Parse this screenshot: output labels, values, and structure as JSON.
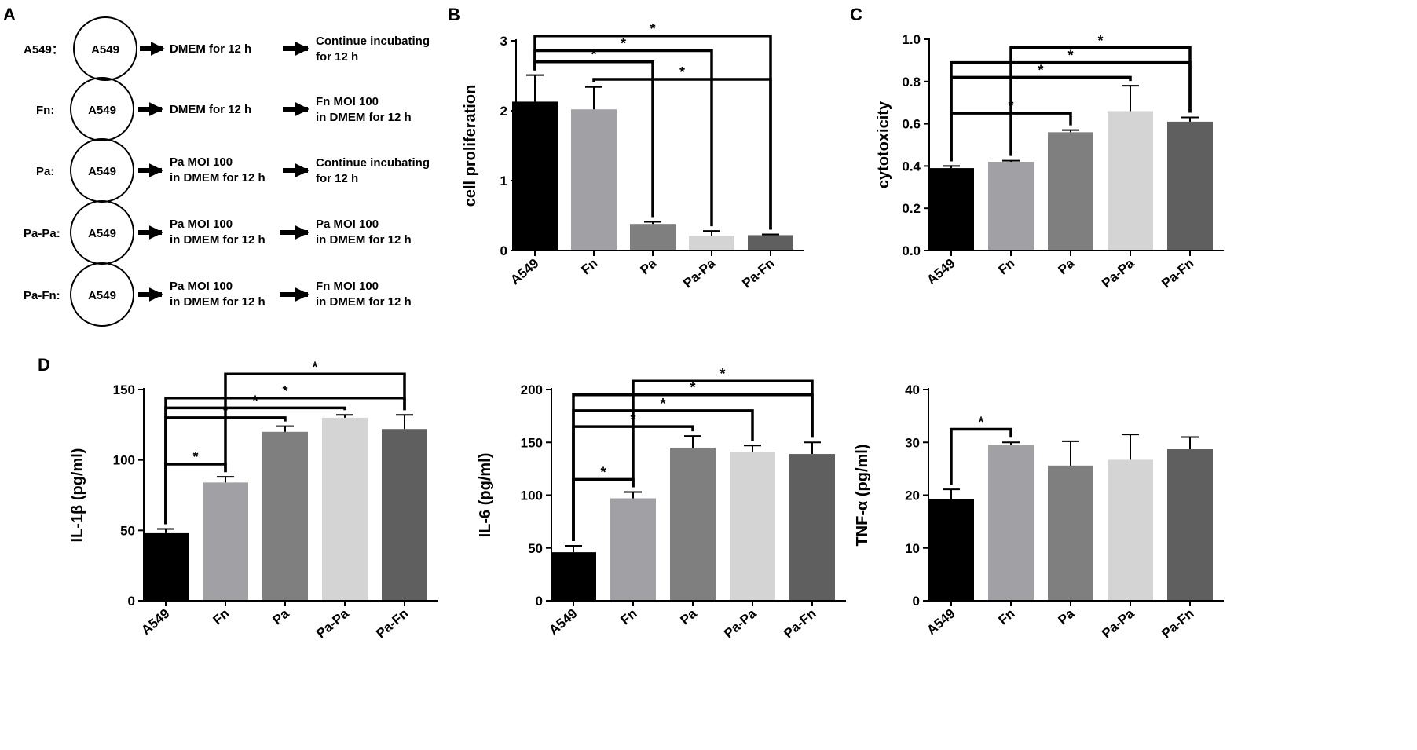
{
  "panel_labels": {
    "A": "A",
    "B": "B",
    "C": "C",
    "D": "D"
  },
  "colors": {
    "A549": "#000000",
    "Fn": "#a0a0a5",
    "Pa": "#7f7f7f",
    "Pa-Pa": "#d4d4d4",
    "Pa-Fn": "#5f5f5f"
  },
  "schematic": {
    "rows": [
      {
        "label": "A549：",
        "circle": "A549",
        "step1": [
          "DMEM for 12 h"
        ],
        "step2": [
          "Continue incubating",
          "for 12 h"
        ]
      },
      {
        "label": "Fn:",
        "circle": "A549",
        "step1": [
          "DMEM for 12 h"
        ],
        "step2": [
          "Fn MOI 100",
          "in DMEM for 12 h"
        ]
      },
      {
        "label": "Pa:",
        "circle": "A549",
        "step1": [
          "Pa MOI 100",
          "in DMEM for 12 h"
        ],
        "step2": [
          "Continue incubating",
          "for 12 h"
        ]
      },
      {
        "label": "Pa-Pa:",
        "circle": "A549",
        "step1": [
          "Pa MOI 100",
          "in DMEM for 12 h"
        ],
        "step2": [
          "Pa MOI 100",
          "in DMEM for 12 h"
        ]
      },
      {
        "label": "Pa-Fn:",
        "circle": "A549",
        "step1": [
          "Pa MOI 100",
          "in DMEM for 12 h"
        ],
        "step2": [
          "Fn MOI 100",
          "in DMEM for 12 h"
        ]
      }
    ]
  },
  "chart_data": [
    {
      "id": "B",
      "type": "bar",
      "title": "",
      "xlabel": "",
      "ylabel": "cell proliferation",
      "categories": [
        "A549",
        "Fn",
        "Pa",
        "Pa-Pa",
        "Pa-Fn"
      ],
      "values": [
        2.13,
        2.02,
        0.38,
        0.21,
        0.22
      ],
      "errors": [
        0.38,
        0.32,
        0.03,
        0.07,
        0.01
      ],
      "ylim": [
        0,
        3
      ],
      "yticks": [
        0,
        1,
        2,
        3
      ],
      "ytick_labels": [
        "0",
        "1",
        "2",
        "3"
      ],
      "significance": [
        {
          "from": 0,
          "to": 2,
          "y": 2.7,
          "label": "*"
        },
        {
          "from": 0,
          "to": 3,
          "y": 2.86,
          "label": "*"
        },
        {
          "from": 0,
          "to": 4,
          "y": 3.07,
          "label": "*"
        },
        {
          "from": 1,
          "to": 4,
          "y": 2.45,
          "label": "*"
        }
      ]
    },
    {
      "id": "C",
      "type": "bar",
      "title": "",
      "xlabel": "",
      "ylabel": "cytotoxicity",
      "categories": [
        "A549",
        "Fn",
        "Pa",
        "Pa-Pa",
        "Pa-Fn"
      ],
      "values": [
        0.39,
        0.42,
        0.56,
        0.66,
        0.61
      ],
      "errors": [
        0.01,
        0.005,
        0.01,
        0.12,
        0.02
      ],
      "ylim": [
        0,
        1.0
      ],
      "yticks": [
        0,
        0.2,
        0.4,
        0.6,
        0.8,
        1.0
      ],
      "ytick_labels": [
        "0.0",
        "0.2",
        "0.4",
        "0.6",
        "0.8",
        "1.0"
      ],
      "significance": [
        {
          "from": 0,
          "to": 2,
          "y": 0.65,
          "label": "*"
        },
        {
          "from": 0,
          "to": 3,
          "y": 0.82,
          "label": "*"
        },
        {
          "from": 0,
          "to": 4,
          "y": 0.89,
          "label": "*"
        },
        {
          "from": 1,
          "to": 4,
          "y": 0.96,
          "label": "*"
        }
      ]
    },
    {
      "id": "D1",
      "type": "bar",
      "title": "",
      "xlabel": "",
      "ylabel": "IL-1β (pg/ml)",
      "categories": [
        "A549",
        "Fn",
        "Pa",
        "Pa-Pa",
        "Pa-Fn"
      ],
      "values": [
        48,
        84,
        120,
        130,
        122
      ],
      "errors": [
        3,
        4,
        4,
        2,
        10
      ],
      "ylim": [
        0,
        150
      ],
      "yticks": [
        0,
        50,
        100,
        150
      ],
      "ytick_labels": [
        "0",
        "50",
        "100",
        "150"
      ],
      "significance": [
        {
          "from": 0,
          "to": 1,
          "y": 97,
          "label": "*"
        },
        {
          "from": 0,
          "to": 2,
          "y": 130,
          "label": "*"
        },
        {
          "from": 0,
          "to": 3,
          "y": 137,
          "label": "*"
        },
        {
          "from": 0,
          "to": 4,
          "y": 144,
          "label": "*"
        },
        {
          "from": 1,
          "to": 4,
          "y": 161,
          "label": "*"
        }
      ]
    },
    {
      "id": "D2",
      "type": "bar",
      "title": "",
      "xlabel": "",
      "ylabel": "IL-6 (pg/ml)",
      "categories": [
        "A549",
        "Fn",
        "Pa",
        "Pa-Pa",
        "Pa-Fn"
      ],
      "values": [
        46,
        97,
        145,
        141,
        139
      ],
      "errors": [
        6,
        6,
        11,
        6,
        11
      ],
      "ylim": [
        0,
        200
      ],
      "yticks": [
        0,
        50,
        100,
        150,
        200
      ],
      "ytick_labels": [
        "0",
        "50",
        "100",
        "150",
        "200"
      ],
      "significance": [
        {
          "from": 0,
          "to": 1,
          "y": 115,
          "label": "*"
        },
        {
          "from": 0,
          "to": 2,
          "y": 165,
          "label": "*"
        },
        {
          "from": 0,
          "to": 3,
          "y": 180,
          "label": "*"
        },
        {
          "from": 0,
          "to": 4,
          "y": 195,
          "label": "*"
        },
        {
          "from": 1,
          "to": 4,
          "y": 208,
          "label": "*"
        }
      ]
    },
    {
      "id": "D3",
      "type": "bar",
      "title": "",
      "xlabel": "",
      "ylabel": "TNF-α (pg/ml)",
      "categories": [
        "A549",
        "Fn",
        "Pa",
        "Pa-Pa",
        "Pa-Fn"
      ],
      "values": [
        19.3,
        29.5,
        25.6,
        26.7,
        28.7
      ],
      "errors": [
        1.8,
        0.5,
        4.6,
        4.8,
        2.3
      ],
      "ylim": [
        0,
        40
      ],
      "yticks": [
        0,
        10,
        20,
        30,
        40
      ],
      "ytick_labels": [
        "0",
        "10",
        "20",
        "30",
        "40"
      ],
      "significance": [
        {
          "from": 0,
          "to": 1,
          "y": 32.5,
          "label": "*"
        }
      ]
    }
  ]
}
